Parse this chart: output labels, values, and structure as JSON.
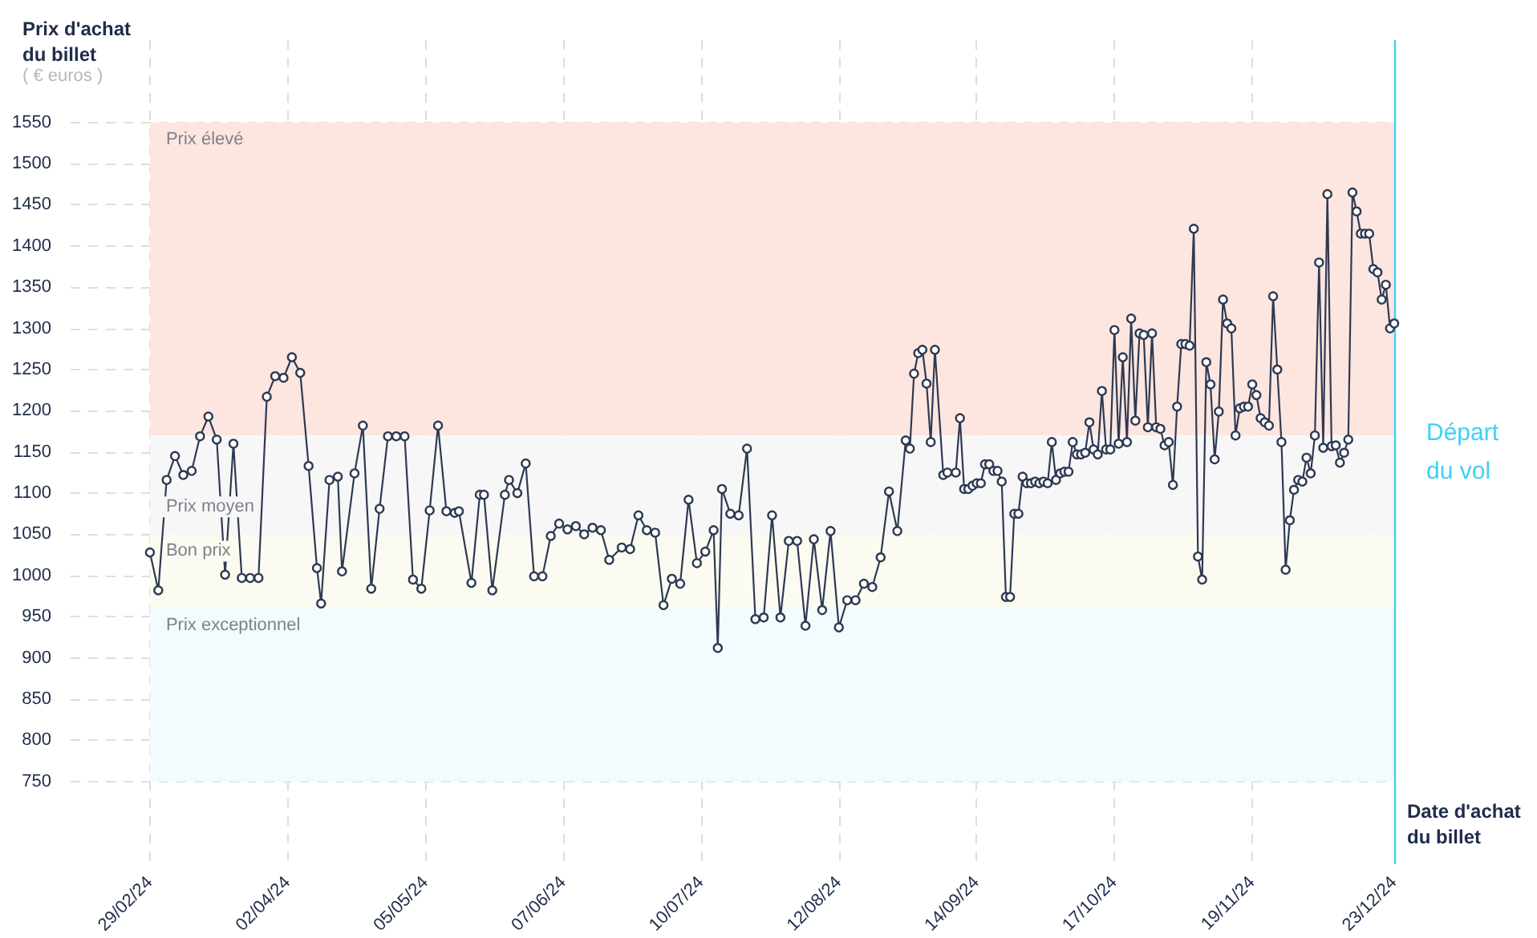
{
  "chart_data": {
    "type": "line",
    "ylabel": "Prix d'achat du billet",
    "xlabel": "Date d'achat du billet",
    "annotations": [
      "( € euros )"
    ],
    "x": [
      "2024-02-29",
      "2024-03-02",
      "2024-03-04",
      "2024-03-06",
      "2024-03-08",
      "2024-03-10",
      "2024-03-12",
      "2024-03-14",
      "2024-03-16",
      "2024-03-18",
      "2024-03-20",
      "2024-03-22",
      "2024-03-24",
      "2024-03-26",
      "2024-03-28",
      "2024-03-30",
      "2024-04-01",
      "2024-04-03",
      "2024-04-05",
      "2024-04-07",
      "2024-04-09",
      "2024-04-10",
      "2024-04-12",
      "2024-04-14",
      "2024-04-15",
      "2024-04-18",
      "2024-04-20",
      "2024-04-22",
      "2024-04-24",
      "2024-04-26",
      "2024-04-28",
      "2024-04-30",
      "2024-05-02",
      "2024-05-04",
      "2024-05-06",
      "2024-05-08",
      "2024-05-10",
      "2024-05-12",
      "2024-05-13",
      "2024-05-16",
      "2024-05-18",
      "2024-05-19",
      "2024-05-21",
      "2024-05-24",
      "2024-05-25",
      "2024-05-27",
      "2024-05-29",
      "2024-05-31",
      "2024-06-02",
      "2024-06-04",
      "2024-06-06",
      "2024-06-08",
      "2024-06-10",
      "2024-06-12",
      "2024-06-14",
      "2024-06-16",
      "2024-06-18",
      "2024-06-21",
      "2024-06-23",
      "2024-06-25",
      "2024-06-27",
      "2024-06-29",
      "2024-07-01",
      "2024-07-03",
      "2024-07-05",
      "2024-07-07",
      "2024-07-09",
      "2024-07-11",
      "2024-07-13",
      "2024-07-14",
      "2024-07-15",
      "2024-07-17",
      "2024-07-19",
      "2024-07-21",
      "2024-07-23",
      "2024-07-25",
      "2024-07-27",
      "2024-07-29",
      "2024-07-31",
      "2024-08-02",
      "2024-08-04",
      "2024-08-06",
      "2024-08-08",
      "2024-08-10",
      "2024-08-12",
      "2024-08-14",
      "2024-08-16",
      "2024-08-18",
      "2024-08-20",
      "2024-08-22",
      "2024-08-24",
      "2024-08-26",
      "2024-08-28",
      "2024-08-29",
      "2024-08-30",
      "2024-08-31",
      "2024-09-01",
      "2024-09-02",
      "2024-09-03",
      "2024-09-04",
      "2024-09-06",
      "2024-09-07",
      "2024-09-09",
      "2024-09-10",
      "2024-09-11",
      "2024-09-12",
      "2024-09-13",
      "2024-09-14",
      "2024-09-15",
      "2024-09-16",
      "2024-09-17",
      "2024-09-18",
      "2024-09-19",
      "2024-09-20",
      "2024-09-21",
      "2024-09-22",
      "2024-09-23",
      "2024-09-24",
      "2024-09-25",
      "2024-09-26",
      "2024-09-27",
      "2024-09-28",
      "2024-09-29",
      "2024-09-30",
      "2024-10-01",
      "2024-10-02",
      "2024-10-03",
      "2024-10-04",
      "2024-10-05",
      "2024-10-06",
      "2024-10-07",
      "2024-10-08",
      "2024-10-09",
      "2024-10-10",
      "2024-10-11",
      "2024-10-12",
      "2024-10-13",
      "2024-10-14",
      "2024-10-15",
      "2024-10-16",
      "2024-10-17",
      "2024-10-18",
      "2024-10-19",
      "2024-10-20",
      "2024-10-21",
      "2024-10-22",
      "2024-10-23",
      "2024-10-24",
      "2024-10-25",
      "2024-10-26",
      "2024-10-27",
      "2024-10-28",
      "2024-10-29",
      "2024-10-30",
      "2024-10-31",
      "2024-11-01",
      "2024-11-02",
      "2024-11-03",
      "2024-11-04",
      "2024-11-05",
      "2024-11-06",
      "2024-11-07",
      "2024-11-08",
      "2024-11-09",
      "2024-11-10",
      "2024-11-11",
      "2024-11-12",
      "2024-11-13",
      "2024-11-14",
      "2024-11-15",
      "2024-11-16",
      "2024-11-17",
      "2024-11-18",
      "2024-11-19",
      "2024-11-20",
      "2024-11-21",
      "2024-11-22",
      "2024-11-23",
      "2024-11-24",
      "2024-11-25",
      "2024-11-26",
      "2024-11-27",
      "2024-11-28",
      "2024-11-29",
      "2024-11-30",
      "2024-12-01",
      "2024-12-02",
      "2024-12-03",
      "2024-12-04",
      "2024-12-05",
      "2024-12-06",
      "2024-12-07",
      "2024-12-08",
      "2024-12-09",
      "2024-12-10",
      "2024-12-11",
      "2024-12-12",
      "2024-12-13",
      "2024-12-14",
      "2024-12-15",
      "2024-12-16",
      "2024-12-17",
      "2024-12-18",
      "2024-12-19",
      "2024-12-20",
      "2024-12-21",
      "2024-12-22",
      "2024-12-23"
    ],
    "series": [
      {
        "color": "#2e3a53",
        "values": [
          1028,
          982,
          1116,
          1145,
          1122,
          1127,
          1169,
          1193,
          1165,
          1001,
          1160,
          997,
          997,
          997,
          1217,
          1242,
          1240,
          1265,
          1246,
          1133,
          1009,
          966,
          1116,
          1120,
          1005,
          1124,
          1182,
          984,
          1081,
          1169,
          1169,
          1169,
          995,
          984,
          1079,
          1182,
          1078,
          1076,
          1078,
          991,
          1098,
          1098,
          982,
          1098,
          1116,
          1100,
          1136,
          999,
          999,
          1048,
          1063,
          1056,
          1060,
          1050,
          1058,
          1055,
          1019,
          1034,
          1032,
          1073,
          1055,
          1052,
          964,
          996,
          990,
          1092,
          1015,
          1029,
          1055,
          912,
          1105,
          1075,
          1073,
          1154,
          947,
          949,
          1073,
          949,
          1042,
          1042,
          939,
          1044,
          958,
          1054,
          937,
          970,
          970,
          990,
          986,
          1022,
          1102,
          1054,
          1164,
          1154,
          1245,
          1270,
          1274,
          1233,
          1162,
          1274,
          1122,
          1125,
          1125,
          1191,
          1105,
          1105,
          1109,
          1112,
          1112,
          1135,
          1135,
          1127,
          1127,
          1114,
          974,
          974,
          1075,
          1075,
          1120,
          1112,
          1112,
          1114,
          1112,
          1114,
          1112,
          1162,
          1116,
          1124,
          1126,
          1126,
          1162,
          1147,
          1147,
          1149,
          1186,
          1153,
          1147,
          1224,
          1153,
          1153,
          1298,
          1160,
          1265,
          1162,
          1312,
          1188,
          1294,
          1292,
          1180,
          1294,
          1180,
          1178,
          1158,
          1162,
          1110,
          1205,
          1281,
          1281,
          1279,
          1421,
          1023,
          995,
          1259,
          1232,
          1141,
          1199,
          1335,
          1306,
          1300,
          1170,
          1203,
          1205,
          1205,
          1232,
          1219,
          1191,
          1186,
          1182,
          1339,
          1250,
          1162,
          1007,
          1067,
          1104,
          1116,
          1114,
          1143,
          1124,
          1170,
          1380,
          1155,
          1463,
          1157,
          1158,
          1137,
          1149,
          1165,
          1465,
          1442,
          1415,
          1415,
          1415,
          1372,
          1368,
          1335,
          1353,
          1300,
          1306
        ]
      }
    ],
    "xlim": [
      "2024-02-10",
      "2024-12-23"
    ],
    "xticks": [
      {
        "value": "2024-02-29",
        "label": "29/02/24"
      },
      {
        "value": "2024-04-02",
        "label": "02/04/24"
      },
      {
        "value": "2024-05-05",
        "label": "05/05/24"
      },
      {
        "value": "2024-06-07",
        "label": "07/06/24"
      },
      {
        "value": "2024-07-10",
        "label": "10/07/24"
      },
      {
        "value": "2024-08-12",
        "label": "12/08/24"
      },
      {
        "value": "2024-09-14",
        "label": "14/09/24"
      },
      {
        "value": "2024-10-17",
        "label": "17/10/24"
      },
      {
        "value": "2024-11-19",
        "label": "19/11/24"
      },
      {
        "value": "2024-12-23",
        "label": "23/12/24"
      }
    ],
    "ylim": [
      650,
      1650
    ],
    "yticks": [
      750,
      800,
      850,
      900,
      950,
      1000,
      1050,
      1100,
      1150,
      1200,
      1250,
      1300,
      1350,
      1400,
      1450,
      1500,
      1550
    ],
    "grid": true,
    "marker": "circle",
    "line_style": "solid",
    "bands": [
      {
        "axis": "y",
        "from": 1170,
        "to": 1550,
        "label": "Prix élevé",
        "color": "#fde6e0"
      },
      {
        "axis": "y",
        "from": 1050,
        "to": 1170,
        "label": "Prix moyen",
        "color": "#f7f7f8"
      },
      {
        "axis": "y",
        "from": 960,
        "to": 1050,
        "label": "Bon prix",
        "color": "#fbfbf1"
      },
      {
        "axis": "y",
        "from": 750,
        "to": 960,
        "label": "Prix exceptionnel",
        "color": "#f2fbfd"
      }
    ],
    "ref_lines": [
      {
        "axis": "x",
        "value": "2024-12-23",
        "label": "Départ du vol",
        "color": "#3fd0f5"
      }
    ]
  }
}
